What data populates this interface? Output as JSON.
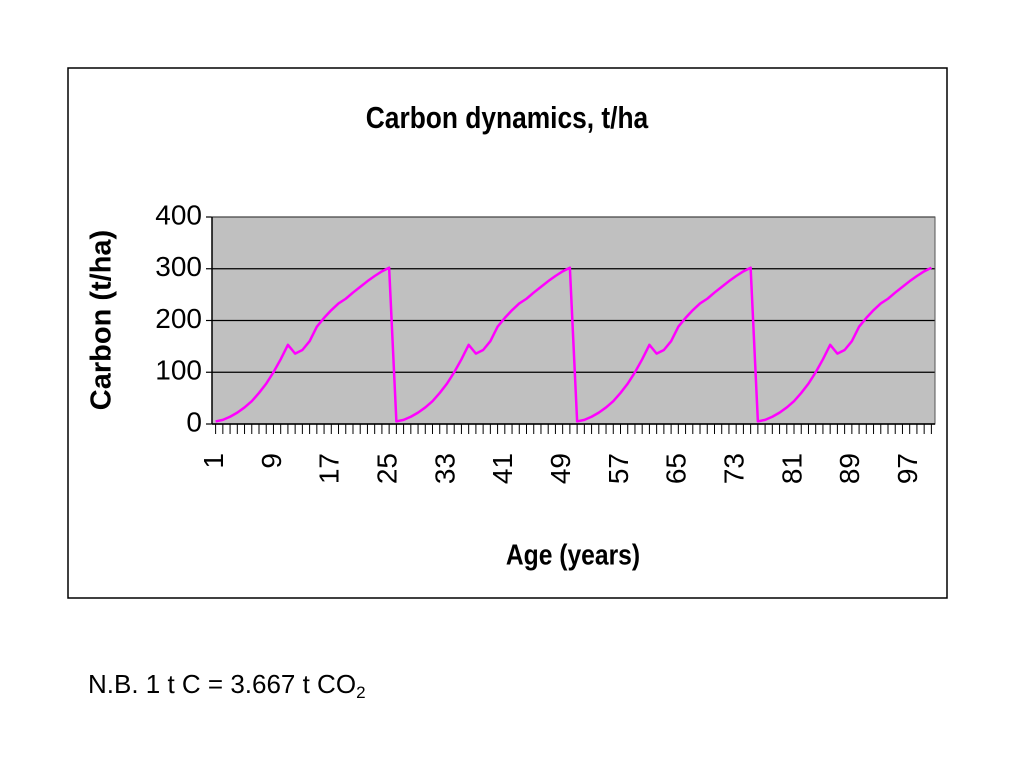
{
  "chart_data": {
    "type": "line",
    "title": "Carbon dynamics, t/ha",
    "x_label": "Age (years)",
    "y_label": "Carbon (t/ha)",
    "categories": [
      1,
      null,
      null,
      null,
      null,
      null,
      null,
      null,
      9,
      null,
      null,
      null,
      null,
      null,
      null,
      null,
      17,
      null,
      null,
      null,
      null,
      null,
      null,
      null,
      25,
      null,
      null,
      null,
      null,
      null,
      null,
      null,
      33,
      null,
      null,
      null,
      null,
      null,
      null,
      null,
      41,
      null,
      null,
      null,
      null,
      null,
      null,
      null,
      49,
      null,
      null,
      null,
      null,
      null,
      null,
      null,
      57,
      null,
      null,
      null,
      null,
      null,
      null,
      null,
      65,
      null,
      null,
      null,
      null,
      null,
      null,
      null,
      73,
      null,
      null,
      null,
      null,
      null,
      null,
      null,
      81,
      null,
      null,
      null,
      null,
      null,
      null,
      null,
      89,
      null,
      null,
      null,
      null,
      null,
      null,
      null,
      97,
      null,
      null,
      null
    ],
    "series": [
      {
        "color": "#ff00ff",
        "values": [
          5,
          8,
          14,
          22,
          32,
          44,
          60,
          78,
          100,
          125,
          153,
          136,
          143,
          160,
          188,
          205,
          220,
          233,
          242,
          254,
          265,
          276,
          286,
          295,
          302,
          5,
          8,
          14,
          22,
          32,
          44,
          60,
          78,
          100,
          125,
          153,
          136,
          143,
          160,
          188,
          205,
          220,
          233,
          242,
          254,
          265,
          276,
          286,
          295,
          302,
          5,
          8,
          14,
          22,
          32,
          44,
          60,
          78,
          100,
          125,
          153,
          136,
          143,
          160,
          188,
          205,
          220,
          233,
          242,
          254,
          265,
          276,
          286,
          295,
          302,
          5,
          8,
          14,
          22,
          32,
          44,
          60,
          78,
          100,
          125,
          153,
          136,
          143,
          160,
          188,
          205,
          220,
          233,
          242,
          254,
          265,
          276,
          286,
          295,
          302
        ]
      }
    ],
    "ylim": [
      0,
      400
    ],
    "yticks": [
      0,
      100,
      200,
      300,
      400
    ],
    "grid": true,
    "plot_background": "#c0c0c0"
  },
  "note": {
    "text": "N.B. 1 t C = 3.667 t CO",
    "subscript": "2"
  }
}
